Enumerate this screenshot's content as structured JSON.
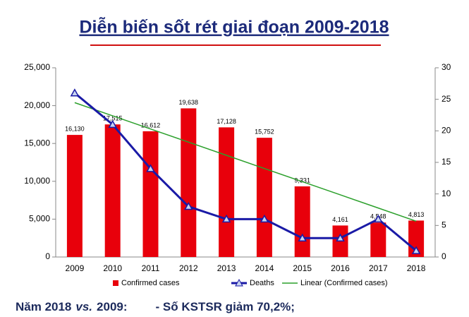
{
  "chart_data": {
    "type": "bar",
    "title": "Diễn biến sốt rét giai đoạn 2009-2018",
    "categories": [
      "2009",
      "2010",
      "2011",
      "2012",
      "2013",
      "2014",
      "2015",
      "2016",
      "2017",
      "2018"
    ],
    "series": [
      {
        "name": "Confirmed cases",
        "color": "#e8000b",
        "type": "bar",
        "values": [
          16130,
          17515,
          16612,
          19638,
          17128,
          15752,
          9331,
          4161,
          4548,
          4813
        ],
        "value_labels": [
          "16,130",
          "17,515",
          "16,612",
          "19,638",
          "17,128",
          "15,752",
          "9,331",
          "4,161",
          "4,548",
          "4,813"
        ]
      },
      {
        "name": "Deaths",
        "color": "#1a1aa6",
        "type": "line",
        "axis": "y2",
        "values": [
          26,
          21,
          14,
          8,
          6,
          6,
          3,
          3,
          6,
          1
        ]
      },
      {
        "name": "Linear (Confirmed cases)",
        "color": "#2ca02c",
        "type": "trend",
        "values": [
          20395,
          18654,
          16914,
          15173,
          13433,
          11692,
          9952,
          8211,
          6471,
          4731
        ]
      }
    ],
    "ylim": [
      0,
      25000
    ],
    "yticks": [
      {
        "value": 0,
        "label": "0"
      },
      {
        "value": 5000,
        "label": "5,000"
      },
      {
        "value": 10000,
        "label": "10,000"
      },
      {
        "value": 15000,
        "label": "15,000"
      },
      {
        "value": 20000,
        "label": "20,000"
      },
      {
        "value": 25000,
        "label": "25,000"
      }
    ],
    "y2lim": [
      0,
      30
    ],
    "y2ticks": [
      0,
      5,
      10,
      15,
      20,
      25,
      30
    ],
    "legend": "bottom"
  },
  "footer": {
    "parts": [
      "Năm 2018",
      "vs.",
      "2009:",
      "- Số KSTSR giảm 70,2%;"
    ]
  }
}
